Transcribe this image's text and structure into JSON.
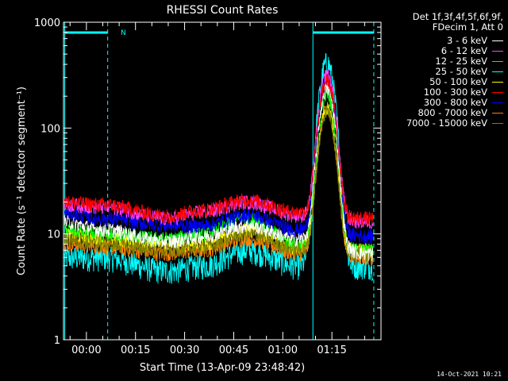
{
  "chart_data": {
    "type": "line",
    "title": "RHESSI Count Rates",
    "xlabel": "Start Time (13-Apr-09 23:48:42)",
    "ylabel": "Count Rate (s⁻¹ detector segment⁻¹)",
    "yscale": "log",
    "ylim": [
      1,
      1000
    ],
    "xlim_minutes": [
      -7,
      90
    ],
    "x_ticks": [
      "00:00",
      "00:15",
      "00:30",
      "00:45",
      "01:00",
      "01:15"
    ],
    "y_ticks": [
      "1",
      "10",
      "100",
      "1000"
    ],
    "legend_header": [
      "Det 1f,3f,4f,5f,6f,9f,",
      "FDecim 1, Att 0"
    ],
    "legend_location": "outside-right",
    "series": [
      {
        "name": "3 - 6 keV",
        "color": "#ffffff",
        "baseline": [
          13,
          11,
          8.5,
          9.5,
          12,
          9,
          6.5
        ],
        "peak": 230
      },
      {
        "name": "6 - 12 keV",
        "color": "#ff40ff",
        "baseline": [
          19,
          18,
          14,
          16,
          20,
          15,
          13
        ],
        "peak": 310
      },
      {
        "name": "12 - 25 keV",
        "color": "#00ff00",
        "baseline": [
          11,
          10,
          9,
          10,
          14,
          8,
          7
        ],
        "peak": 200
      },
      {
        "name": "25 - 50 keV",
        "color": "#00ffff",
        "baseline": [
          6,
          6,
          4.5,
          5,
          7,
          5,
          5
        ],
        "peak": 410
      },
      {
        "name": "50 - 100 keV",
        "color": "#ffff00",
        "baseline": [
          10,
          9,
          8,
          8,
          11,
          7.5,
          7
        ],
        "peak": 150
      },
      {
        "name": "100 - 300 keV",
        "color": "#ff0000",
        "baseline": [
          20,
          19,
          15,
          17,
          21,
          16,
          14
        ],
        "peak": 270
      },
      {
        "name": "300 - 800 keV",
        "color": "#0000ff",
        "baseline": [
          16,
          14,
          12,
          12,
          15,
          11,
          9.5
        ],
        "peak": 290
      },
      {
        "name": "800 - 7000 keV",
        "color": "#ff8000",
        "baseline": [
          8,
          7.5,
          6.5,
          7,
          9,
          6.5,
          6
        ],
        "peak": 145
      },
      {
        "name": "7000 - 15000 keV",
        "color": "#808000",
        "baseline": [
          9,
          8,
          7,
          7.5,
          10,
          7,
          6.5
        ],
        "peak": 140
      }
    ],
    "baseline_x_minutes": [
      -7,
      5,
      25,
      35,
      49,
      65,
      88
    ],
    "flare_peak_minute": 73.5,
    "annotations": [
      {
        "label": "N"
      }
    ]
  },
  "timestamp": "14-Oct-2021 10:21"
}
